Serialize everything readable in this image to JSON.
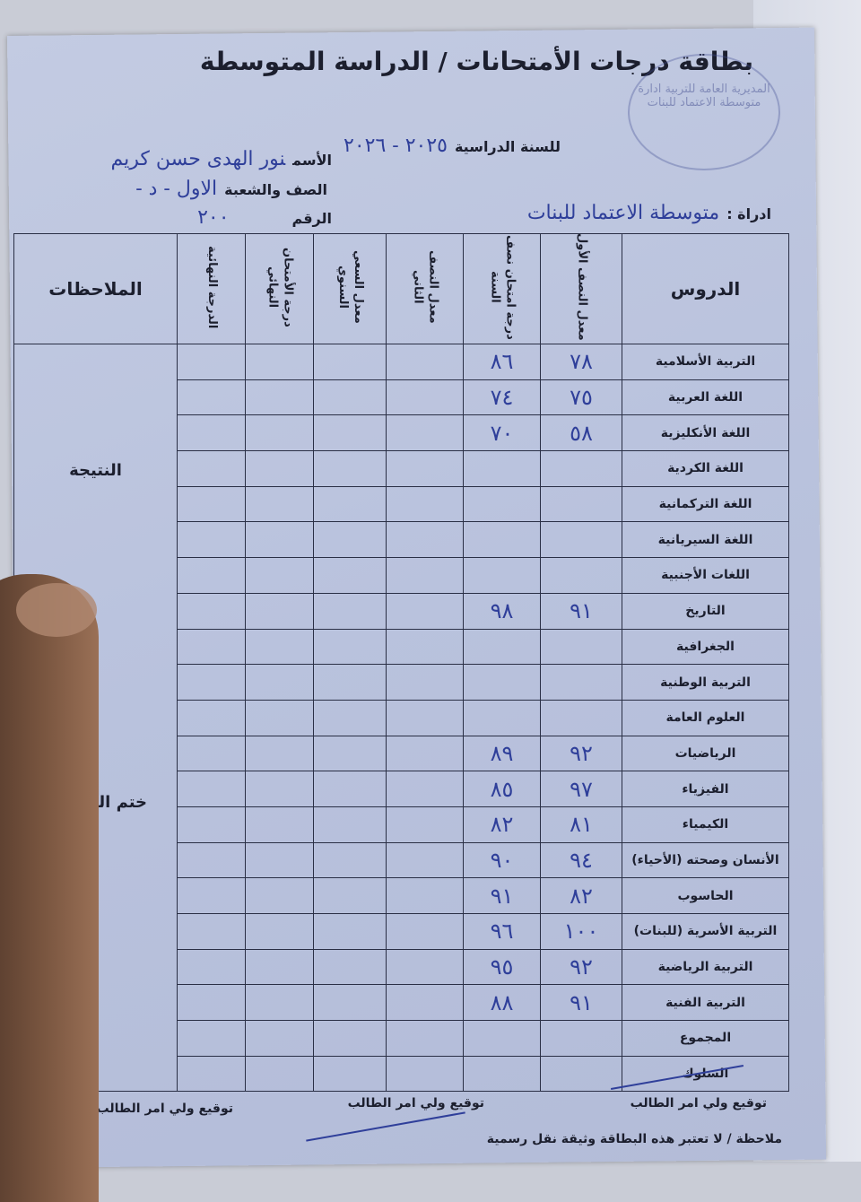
{
  "header": {
    "title": "بطاقة درجات الأمتحانات / الدراسة المتوسطة",
    "year_label": "للسنة الدراسية",
    "year_value": "٢٠٢٥ - ٢٠٢٦",
    "name_label": "الأسم",
    "name_value": "نور الهدى حسن كريم",
    "class_label": "الصف والشعبة",
    "class_value": "الاول - د -",
    "number_label": "الرقم",
    "number_value": "٢٠٠",
    "admin_label": "ادراة :",
    "admin_value": "متوسطة الاعتماد للبنات",
    "stamp_text": "المديرية العامة للتربية ادارة متوسطة الاعتماد للبنات"
  },
  "table": {
    "columns": [
      "الدروس",
      "معدل النصف الأول",
      "درجة امتحان نصف السنة",
      "معدل النصف الثاني",
      "معدل السعي السنوي",
      "درجة الأمتحان النهائي",
      "الدرجة النهائية",
      "الملاحظات"
    ],
    "rows": [
      {
        "subject": "التربية الأسلامية",
        "first_half": "٧٨",
        "midyear": "٨٦"
      },
      {
        "subject": "اللغة العربية",
        "first_half": "٧٥",
        "midyear": "٧٤"
      },
      {
        "subject": "اللغة الأنكليزية",
        "first_half": "٥٨",
        "midyear": "٧٠"
      },
      {
        "subject": "اللغة الكردية",
        "first_half": "",
        "midyear": ""
      },
      {
        "subject": "اللغة التركمانية",
        "first_half": "",
        "midyear": ""
      },
      {
        "subject": "اللغة السيريانية",
        "first_half": "",
        "midyear": ""
      },
      {
        "subject": "اللغات الأجنبية",
        "first_half": "",
        "midyear": ""
      },
      {
        "subject": "التاريخ",
        "first_half": "٩١",
        "midyear": "٩٨"
      },
      {
        "subject": "الجغرافية",
        "first_half": "",
        "midyear": ""
      },
      {
        "subject": "التربية الوطنية",
        "first_half": "",
        "midyear": ""
      },
      {
        "subject": "العلوم العامة",
        "first_half": "",
        "midyear": ""
      },
      {
        "subject": "الرياضيات",
        "first_half": "٩٢",
        "midyear": "٨٩"
      },
      {
        "subject": "الفيزياء",
        "first_half": "٩٧",
        "midyear": "٨٥"
      },
      {
        "subject": "الكيمياء",
        "first_half": "٨١",
        "midyear": "٨٢"
      },
      {
        "subject": "الأنسان وصحته (الأحياء)",
        "first_half": "٩٤",
        "midyear": "٩٠"
      },
      {
        "subject": "الحاسوب",
        "first_half": "٨٢",
        "midyear": "٩١"
      },
      {
        "subject": "التربية الأسرية (للبنات)",
        "first_half": "١٠٠",
        "midyear": "٩٦"
      },
      {
        "subject": "التربية الرياضية",
        "first_half": "٩٢",
        "midyear": "٩٥"
      },
      {
        "subject": "التربية الفنية",
        "first_half": "٩١",
        "midyear": "٨٨"
      },
      {
        "subject": "المجموع",
        "first_half": "",
        "midyear": ""
      },
      {
        "subject": "السلوك",
        "first_half": "",
        "midyear": ""
      }
    ],
    "notes": {
      "result": "النتيجة",
      "school_stamp": "ختم المدرسة"
    }
  },
  "footer": {
    "sig1": "توقيع ولي امر الطالب",
    "sig2": "توقيع ولي امر الطالب",
    "sig3": "توقيع ولي امر الطالب",
    "note": "ملاحظة / لا تعتبر هذه البطاقة وثيقة نقل رسمية"
  },
  "colors": {
    "ink": "#2f3f9a",
    "print": "#1c1f2e",
    "paper": "#bcc4de"
  }
}
